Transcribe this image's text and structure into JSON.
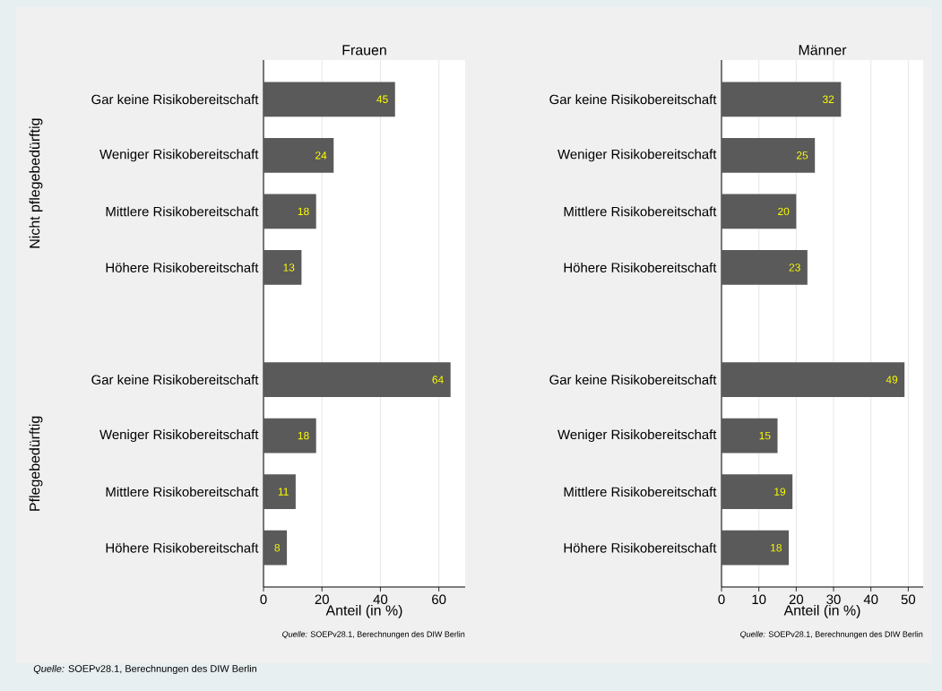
{
  "chart_data": [
    {
      "type": "bar",
      "orientation": "horizontal",
      "title": "Frauen",
      "xlabel": "Anteil (in %)",
      "categories": [
        "Gar keine Risikobereitschaft",
        "Weniger Risikobereitschaft",
        "Mittlere Risikobereitschaft",
        "Höhere Risikobereitschaft",
        null,
        "Gar keine Risikobereitschaft",
        "Weniger Risikobereitschaft",
        "Mittlere Risikobereitschaft",
        "Höhere Risikobereitschaft"
      ],
      "values": [
        45,
        24,
        18,
        13,
        null,
        64,
        18,
        11,
        8
      ],
      "color": "#5a5a5a",
      "xlim": [
        0,
        69
      ],
      "xticks": [
        0,
        20,
        40,
        60
      ],
      "grid": "x",
      "data_labels": true,
      "annotations": [
        "Nicht pflegebedürftig",
        "Pflegebedürftig",
        "*Quelle:* SOEPv28.1, Berechnungen des DIW Berlin",
        "*Quelle:* SOEPv28.1, Berechnungen des DIW Berlin"
      ]
    },
    {
      "type": "bar",
      "orientation": "horizontal",
      "title": "Männer",
      "xlabel": "Anteil (in %)",
      "categories": [
        "Gar keine Risikobereitschaft",
        "Weniger Risikobereitschaft",
        "Mittlere Risikobereitschaft",
        "Höhere Risikobereitschaft",
        null,
        "Gar keine Risikobereitschaft",
        "Weniger Risikobereitschaft",
        "Mittlere Risikobereitschaft",
        "Höhere Risikobereitschaft"
      ],
      "values": [
        32,
        25,
        20,
        23,
        null,
        49,
        15,
        19,
        18
      ],
      "color": "#5a5a5a",
      "xlim": [
        0,
        54
      ],
      "xticks": [
        0,
        10,
        20,
        30,
        40,
        50
      ],
      "grid": "x",
      "data_labels": true,
      "annotations": [
        "*Quelle:* SOEPv28.1, Berechnungen des DIW Berlin"
      ]
    }
  ]
}
